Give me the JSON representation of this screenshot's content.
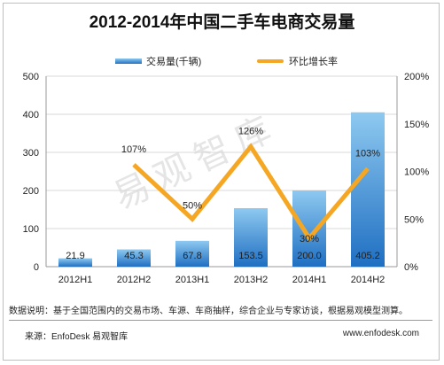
{
  "title": "2012-2014年中国二手车电商交易量",
  "legend": {
    "bar_label": "交易量(千辆)",
    "line_label": "环比增长率"
  },
  "watermark": "易观智库",
  "note": "数据说明：基于全国范围内的交易市场、车源、车商抽样，综合企业与专家访谈，根据易观模型测算。",
  "source": "来源：EnfoDesk 易观智库",
  "website": "www.enfodesk.com",
  "colors": {
    "bar_top": "#8ec9f0",
    "bar_bottom": "#1f6fc2",
    "line": "#f5a623",
    "grid": "#d9d9d9"
  },
  "chart_data": {
    "type": "bar+line",
    "categories": [
      "2012H1",
      "2012H2",
      "2013H1",
      "2013H2",
      "2014H1",
      "2014H2"
    ],
    "series": [
      {
        "name": "交易量(千辆)",
        "type": "bar",
        "axis": "left",
        "values": [
          21.9,
          45.3,
          67.8,
          153.5,
          200.0,
          405.2
        ],
        "labels": [
          "21.9",
          "45.3",
          "67.8",
          "153.5",
          "200.0",
          "405.2"
        ]
      },
      {
        "name": "环比增长率",
        "type": "line",
        "axis": "right",
        "values": [
          null,
          107,
          50,
          126,
          30,
          103
        ],
        "labels": [
          "",
          "107%",
          "50%",
          "126%",
          "30%",
          "103%"
        ]
      }
    ],
    "left_axis": {
      "ylim": [
        0,
        500
      ],
      "ticks": [
        "0",
        "100",
        "200",
        "300",
        "400",
        "500"
      ]
    },
    "right_axis": {
      "ylim": [
        0,
        200
      ],
      "ticks": [
        "0%",
        "50%",
        "100%",
        "150%",
        "200%"
      ]
    },
    "grid": true,
    "legend_position": "top-center"
  }
}
